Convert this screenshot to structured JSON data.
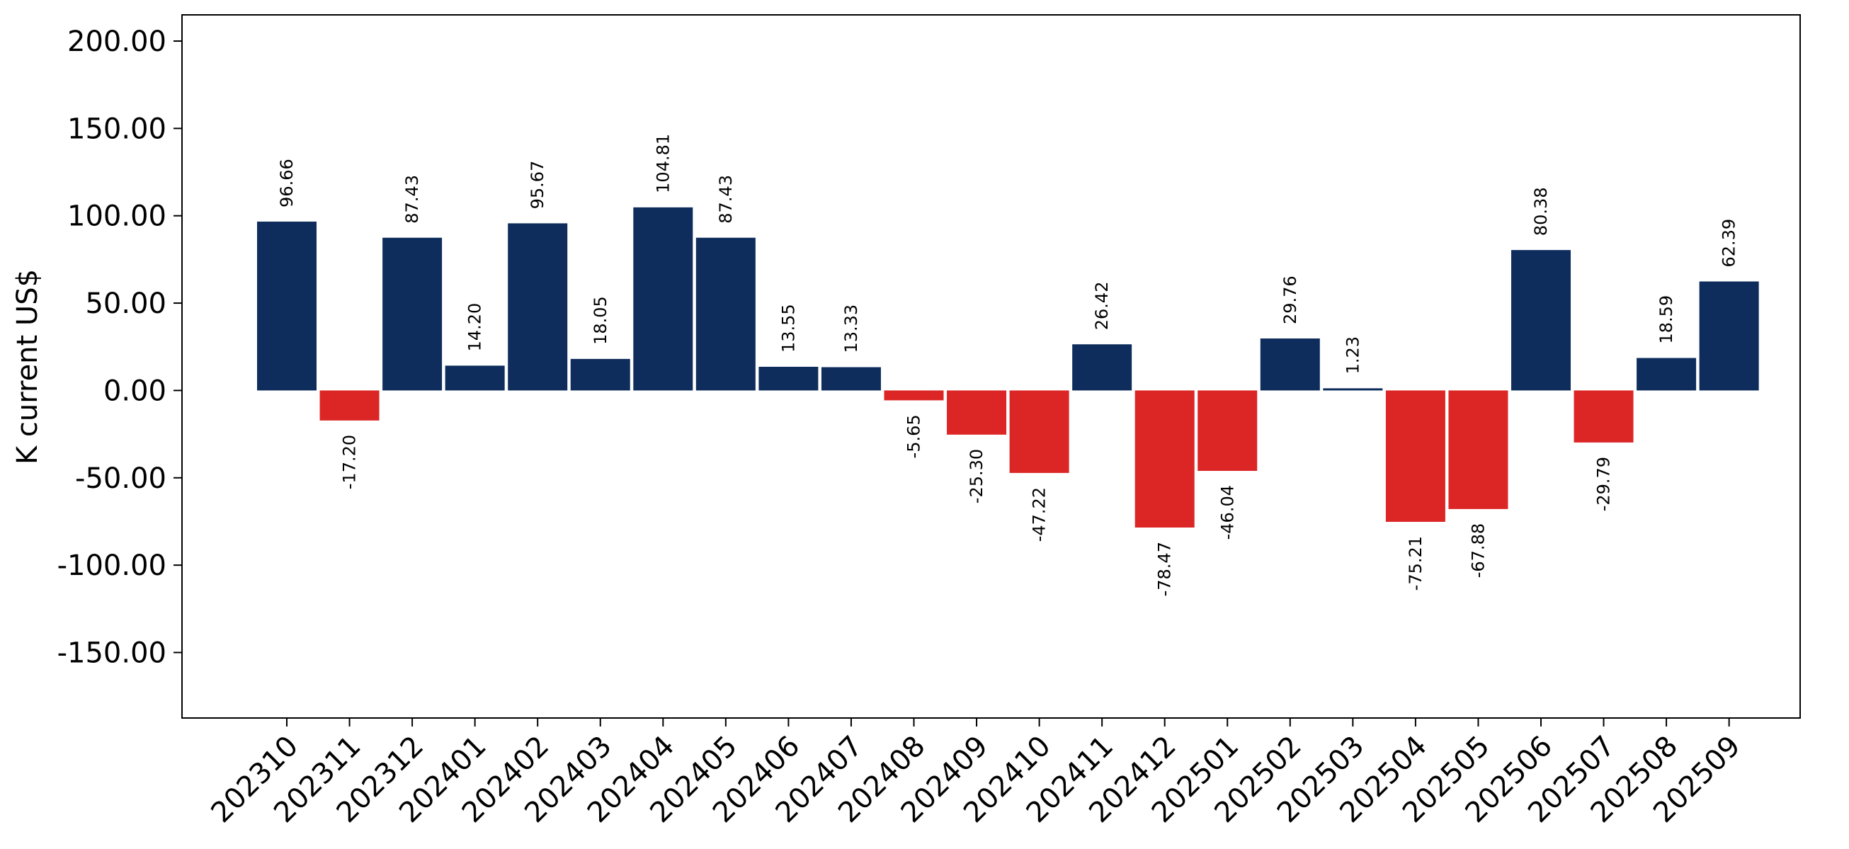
{
  "chart_data": {
    "type": "bar",
    "title": "",
    "xlabel": "",
    "ylabel": "K current US$",
    "ylim": [
      -187.5,
      215
    ],
    "yticks": [
      "-150.00",
      "-100.00",
      "-50.00",
      "0.00",
      "50.00",
      "100.00",
      "150.00",
      "200.00"
    ],
    "ytick_values": [
      -150,
      -100,
      -50,
      0,
      50,
      100,
      150,
      200
    ],
    "grid": false,
    "colors": {
      "positive": "#0e2d5c",
      "negative": "#dc2626"
    },
    "categories": [
      "202310",
      "202311",
      "202312",
      "202401",
      "202402",
      "202403",
      "202404",
      "202405",
      "202406",
      "202407",
      "202408",
      "202409",
      "202410",
      "202411",
      "202412",
      "202501",
      "202502",
      "202503",
      "202504",
      "202505",
      "202506",
      "202507",
      "202508",
      "202509"
    ],
    "values": [
      96.66,
      -17.2,
      87.43,
      14.2,
      95.67,
      18.05,
      104.81,
      87.43,
      13.55,
      13.33,
      -5.65,
      -25.3,
      -47.22,
      26.42,
      -78.47,
      -46.04,
      29.76,
      1.23,
      -75.21,
      -67.88,
      80.38,
      -29.79,
      18.59,
      62.39
    ],
    "value_labels": [
      "96.66",
      "-17.20",
      "87.43",
      "14.20",
      "95.67",
      "18.05",
      "104.81",
      "87.43",
      "13.55",
      "13.33",
      "-5.65",
      "-25.30",
      "-47.22",
      "26.42",
      "-78.47",
      "-46.04",
      "29.76",
      "1.23",
      "-75.21",
      "-67.88",
      "80.38",
      "-29.79",
      "18.59",
      "62.39"
    ]
  }
}
